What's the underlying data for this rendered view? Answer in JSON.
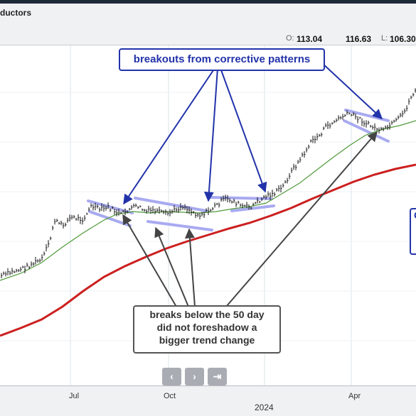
{
  "header": {
    "title": "ductors",
    "open_label": "O:",
    "open": "113.04",
    "high": "116.63",
    "low_label": "L:",
    "low": "106.30"
  },
  "annotations": {
    "top": "breakouts from corrective patterns",
    "bottom": "breaks below the 50 day\ndid not foreshadow a\nbigger trend change",
    "right_fragment": "C"
  },
  "nav": {
    "prev": "‹",
    "next": "›",
    "end": "⇥"
  },
  "colors": {
    "price": "#111111",
    "ma50": "#4f9a3a",
    "ma200": "#cc1f1f",
    "pattern_band": "#a8aaf0",
    "arrow_blue": "#2233aa",
    "arrow_gray": "#444444"
  },
  "chart_data": {
    "type": "line",
    "x_tick_labels": [
      "Jul",
      "Oct",
      "2024",
      "Apr"
    ],
    "series": [
      {
        "style": "ohlc-bars",
        "color": "#111111",
        "points": [
          [
            0,
            389
          ],
          [
            0.03,
            383
          ],
          [
            0.06,
            377
          ],
          [
            0.09,
            368
          ],
          [
            0.1,
            366
          ],
          [
            0.12,
            340
          ],
          [
            0.13,
            310
          ],
          [
            0.15,
            318
          ],
          [
            0.17,
            306
          ],
          [
            0.2,
            309
          ],
          [
            0.22,
            290
          ],
          [
            0.24,
            295
          ],
          [
            0.26,
            292
          ],
          [
            0.29,
            302
          ],
          [
            0.31,
            295
          ],
          [
            0.33,
            290
          ],
          [
            0.35,
            298
          ],
          [
            0.37,
            296
          ],
          [
            0.4,
            302
          ],
          [
            0.42,
            296
          ],
          [
            0.44,
            290
          ],
          [
            0.46,
            298
          ],
          [
            0.48,
            303
          ],
          [
            0.5,
            298
          ],
          [
            0.52,
            289
          ],
          [
            0.54,
            280
          ],
          [
            0.56,
            283
          ],
          [
            0.58,
            290
          ],
          [
            0.6,
            292
          ],
          [
            0.62,
            284
          ],
          [
            0.64,
            276
          ],
          [
            0.66,
            272
          ],
          [
            0.68,
            263
          ],
          [
            0.7,
            242
          ],
          [
            0.72,
            226
          ],
          [
            0.74,
            208
          ],
          [
            0.75,
            198
          ],
          [
            0.77,
            190
          ],
          [
            0.78,
            180
          ],
          [
            0.8,
            173
          ],
          [
            0.82,
            165
          ],
          [
            0.84,
            160
          ],
          [
            0.86,
            166
          ],
          [
            0.88,
            174
          ],
          [
            0.9,
            180
          ],
          [
            0.92,
            185
          ],
          [
            0.93,
            180
          ],
          [
            0.95,
            172
          ],
          [
            0.97,
            160
          ],
          [
            0.99,
            135
          ],
          [
            1,
            125
          ]
        ]
      },
      {
        "style": "line",
        "color": "#4f9a3a",
        "points": [
          [
            0,
            395
          ],
          [
            0.05,
            385
          ],
          [
            0.1,
            370
          ],
          [
            0.15,
            348
          ],
          [
            0.2,
            328
          ],
          [
            0.25,
            310
          ],
          [
            0.28,
            302
          ],
          [
            0.32,
            298
          ],
          [
            0.36,
            300
          ],
          [
            0.4,
            298
          ],
          [
            0.44,
            299
          ],
          [
            0.48,
            300
          ],
          [
            0.52,
            298
          ],
          [
            0.56,
            294
          ],
          [
            0.6,
            291
          ],
          [
            0.64,
            286
          ],
          [
            0.68,
            272
          ],
          [
            0.72,
            258
          ],
          [
            0.76,
            240
          ],
          [
            0.8,
            222
          ],
          [
            0.84,
            205
          ],
          [
            0.88,
            190
          ],
          [
            0.92,
            182
          ],
          [
            0.96,
            177
          ],
          [
            1,
            170
          ]
        ]
      },
      {
        "style": "line",
        "color": "#cc1f1f",
        "points": [
          [
            0,
            473
          ],
          [
            0.05,
            462
          ],
          [
            0.1,
            450
          ],
          [
            0.15,
            432
          ],
          [
            0.2,
            410
          ],
          [
            0.25,
            390
          ],
          [
            0.3,
            375
          ],
          [
            0.35,
            362
          ],
          [
            0.4,
            350
          ],
          [
            0.45,
            340
          ],
          [
            0.5,
            331
          ],
          [
            0.55,
            322
          ],
          [
            0.6,
            314
          ],
          [
            0.65,
            304
          ],
          [
            0.7,
            293
          ],
          [
            0.75,
            280
          ],
          [
            0.8,
            268
          ],
          [
            0.85,
            256
          ],
          [
            0.9,
            246
          ],
          [
            0.95,
            238
          ],
          [
            1,
            232
          ]
        ]
      }
    ]
  }
}
